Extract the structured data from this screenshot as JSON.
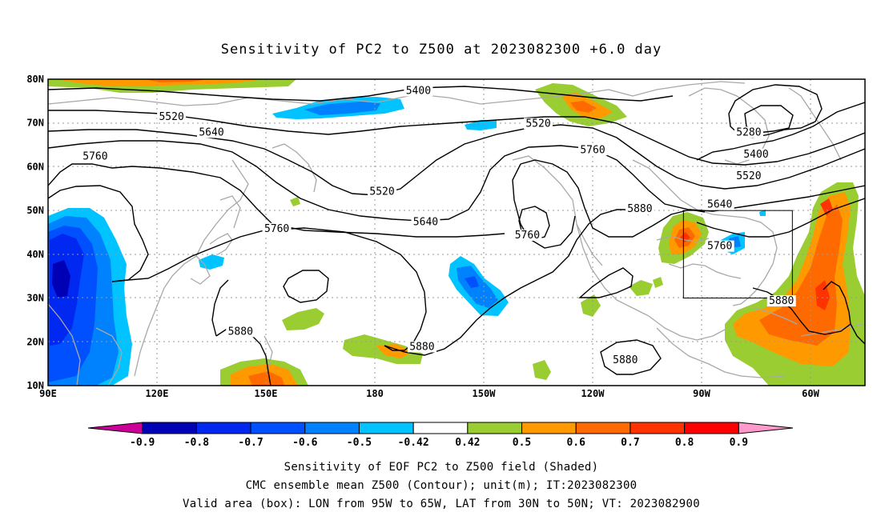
{
  "title": "Sensitivity of PC2 to Z500 at 2023082300 +6.0 day",
  "map": {
    "lat_labels": [
      "80N",
      "70N",
      "60N",
      "50N",
      "40N",
      "30N",
      "20N",
      "10N"
    ],
    "lon_labels": [
      "90E",
      "120E",
      "150E",
      "180",
      "150W",
      "120W",
      "90W",
      "60W"
    ],
    "lon_range_deg_east": [
      90,
      315
    ],
    "lat_range_deg": [
      10,
      80
    ],
    "grid": "dotted",
    "contour_labels": [
      {
        "value": "5400",
        "lon": 192,
        "lat": 77
      },
      {
        "value": "5520",
        "lon": 124,
        "lat": 71
      },
      {
        "value": "5520",
        "lon": 225,
        "lat": 69.5
      },
      {
        "value": "5520",
        "lon": 182,
        "lat": 54
      },
      {
        "value": "5640",
        "lon": 135,
        "lat": 67.5
      },
      {
        "value": "5640",
        "lon": 194,
        "lat": 47
      },
      {
        "value": "5760",
        "lon": 103,
        "lat": 62
      },
      {
        "value": "5760",
        "lon": 153,
        "lat": 45.5
      },
      {
        "value": "5760",
        "lon": 222,
        "lat": 44
      },
      {
        "value": "5760",
        "lon": 240,
        "lat": 63.5
      },
      {
        "value": "5880",
        "lon": 253,
        "lat": 50
      },
      {
        "value": "5880",
        "lon": 143,
        "lat": 22
      },
      {
        "value": "5880",
        "lon": 193,
        "lat": 18.5
      },
      {
        "value": "5880",
        "lon": 249,
        "lat": 15.5
      },
      {
        "value": "5880",
        "lon": 292,
        "lat": 29
      },
      {
        "value": "5280",
        "lon": 283,
        "lat": 67.5
      },
      {
        "value": "5400",
        "lon": 285,
        "lat": 62.5
      },
      {
        "value": "5520",
        "lon": 283,
        "lat": 57.5
      },
      {
        "value": "5640",
        "lon": 275,
        "lat": 51
      },
      {
        "value": "5760",
        "lon": 275,
        "lat": 41.5
      }
    ],
    "valid_box": {
      "lon_west": 265,
      "lon_east": 295,
      "lat_south": 30,
      "lat_north": 50
    }
  },
  "colorbar": {
    "labels": [
      "-0.9",
      "-0.8",
      "-0.7",
      "-0.6",
      "-0.5",
      "-0.42",
      "0.42",
      "0.5",
      "0.6",
      "0.7",
      "0.8",
      "0.9"
    ],
    "colors": [
      "#cc0099",
      "#0000b4",
      "#0028f0",
      "#0050ff",
      "#0082ff",
      "#00c3ff",
      "#ffffff",
      "#9acd32",
      "#ff9900",
      "#ff6a00",
      "#ff3300",
      "#ff0000",
      "#ff99cc"
    ]
  },
  "footer": {
    "line1": "Sensitivity of EOF PC2 to Z500 field (Shaded)",
    "line2": "CMC ensemble mean Z500 (Contour); unit(m); IT:2023082300",
    "line3": "Valid area (box): LON from 95W to 65W, LAT from 30N to 50N; VT: 2023082900"
  }
}
